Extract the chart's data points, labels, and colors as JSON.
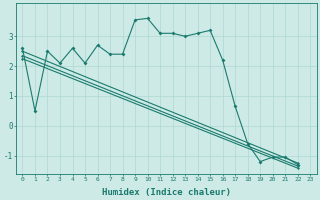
{
  "xlabel": "Humidex (Indice chaleur)",
  "bg_color": "#ceeae6",
  "line_color": "#1a7a6e",
  "grid_color": "#aed8d2",
  "xlim": [
    -0.5,
    23.5
  ],
  "ylim": [
    -1.6,
    4.1
  ],
  "yticks": [
    -1,
    0,
    1,
    2,
    3
  ],
  "xticks": [
    0,
    1,
    2,
    3,
    4,
    5,
    6,
    7,
    8,
    9,
    10,
    11,
    12,
    13,
    14,
    15,
    16,
    17,
    18,
    19,
    20,
    21,
    22,
    23
  ],
  "series1_x": [
    0,
    1,
    2,
    3,
    4,
    5,
    6,
    7,
    8,
    9,
    10,
    11,
    12,
    13,
    14,
    15,
    16,
    17,
    18,
    19,
    20,
    21,
    22
  ],
  "series1_y": [
    2.6,
    0.5,
    2.5,
    2.1,
    2.6,
    2.1,
    2.7,
    2.4,
    2.4,
    3.55,
    3.6,
    3.1,
    3.1,
    3.0,
    3.1,
    3.2,
    2.2,
    0.65,
    -0.6,
    -1.2,
    -1.05,
    -1.05,
    -1.3
  ],
  "series2_x": [
    0,
    22
  ],
  "series2_y": [
    2.5,
    -1.25
  ],
  "series3_x": [
    0,
    22
  ],
  "series3_y": [
    2.35,
    -1.35
  ],
  "series4_x": [
    0,
    22
  ],
  "series4_y": [
    2.25,
    -1.42
  ]
}
